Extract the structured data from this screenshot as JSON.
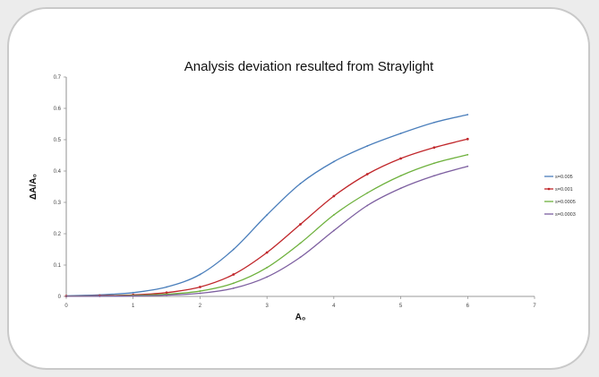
{
  "chart_data": {
    "type": "line",
    "title": "Analysis deviation resulted from Straylight",
    "xlabel": "A₀",
    "ylabel": "ΔA/A₀",
    "xlim": [
      0,
      7
    ],
    "ylim": [
      0,
      0.7
    ],
    "xticks": [
      "0",
      "1",
      "2",
      "3",
      "4",
      "5",
      "6",
      "7"
    ],
    "yticks": [
      "0",
      "0.1",
      "0.2",
      "0.3",
      "0.4",
      "0.5",
      "0.6",
      "0.7"
    ],
    "grid": false,
    "legend_position": "right",
    "x": [
      0,
      0.5,
      1,
      1.5,
      2,
      2.5,
      3,
      3.5,
      4,
      4.5,
      5,
      5.5,
      6
    ],
    "series": [
      {
        "name": "s=0.005",
        "color": "#4a7ebb",
        "marker": false,
        "values": [
          0.002,
          0.005,
          0.012,
          0.03,
          0.07,
          0.15,
          0.26,
          0.36,
          0.43,
          0.48,
          0.52,
          0.555,
          0.58
        ]
      },
      {
        "name": "s=0.001",
        "color": "#c0262a",
        "marker": true,
        "values": [
          0.001,
          0.002,
          0.005,
          0.012,
          0.03,
          0.07,
          0.14,
          0.23,
          0.32,
          0.39,
          0.44,
          0.475,
          0.502
        ]
      },
      {
        "name": "s=0.0005",
        "color": "#6eb13d",
        "marker": false,
        "values": [
          0.0005,
          0.001,
          0.003,
          0.007,
          0.017,
          0.042,
          0.092,
          0.17,
          0.26,
          0.33,
          0.385,
          0.425,
          0.452
        ]
      },
      {
        "name": "s=0.0003",
        "color": "#7d5fa0",
        "marker": false,
        "values": [
          0.0003,
          0.0006,
          0.0015,
          0.004,
          0.01,
          0.026,
          0.062,
          0.125,
          0.21,
          0.29,
          0.345,
          0.385,
          0.415
        ]
      }
    ]
  }
}
